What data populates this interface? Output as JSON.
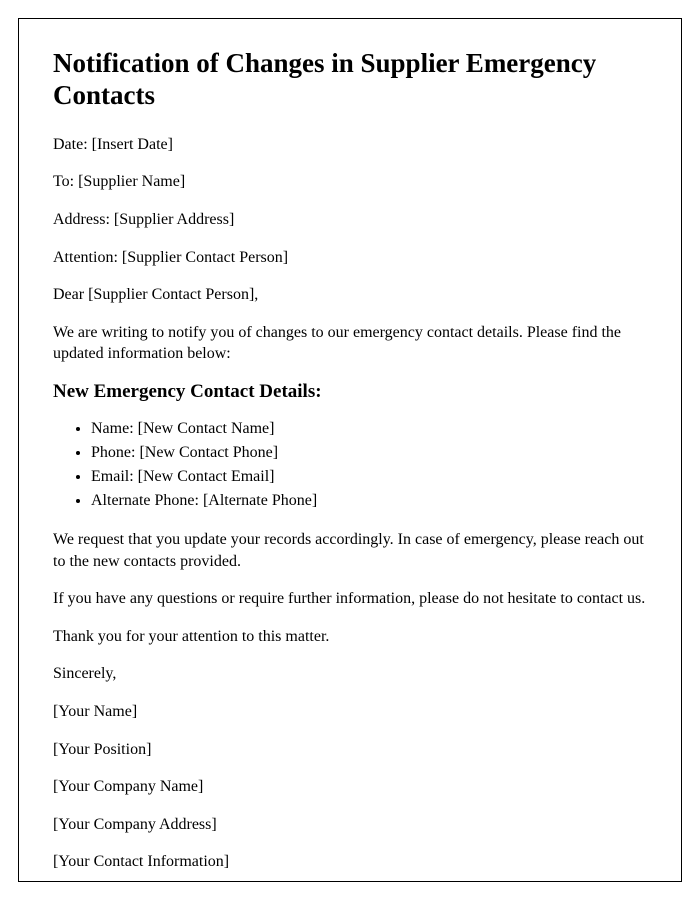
{
  "title": "Notification of Changes in Supplier Emergency Contacts",
  "date_line": "Date: [Insert Date]",
  "to_line": "To: [Supplier Name]",
  "address_line": "Address: [Supplier Address]",
  "attention_line": "Attention: [Supplier Contact Person]",
  "salutation": "Dear [Supplier Contact Person],",
  "intro_paragraph": "We are writing to notify you of changes to our emergency contact details. Please find the updated information below:",
  "section_heading": "New Emergency Contact Details:",
  "contact_details": [
    "Name: [New Contact Name]",
    "Phone: [New Contact Phone]",
    "Email: [New Contact Email]",
    "Alternate Phone: [Alternate Phone]"
  ],
  "request_paragraph": "We request that you update your records accordingly. In case of emergency, please reach out to the new contacts provided.",
  "questions_paragraph": "If you have any questions or require further information, please do not hesitate to contact us.",
  "thanks_paragraph": "Thank you for your attention to this matter.",
  "closing": "Sincerely,",
  "signature": {
    "name": "[Your Name]",
    "position": "[Your Position]",
    "company_name": "[Your Company Name]",
    "company_address": "[Your Company Address]",
    "contact_info": "[Your Contact Information]"
  },
  "styling": {
    "font_family": "Times New Roman",
    "title_fontsize": 27,
    "body_fontsize": 16,
    "heading_fontsize": 19,
    "border_color": "#000000",
    "background_color": "#ffffff",
    "text_color": "#000000"
  }
}
